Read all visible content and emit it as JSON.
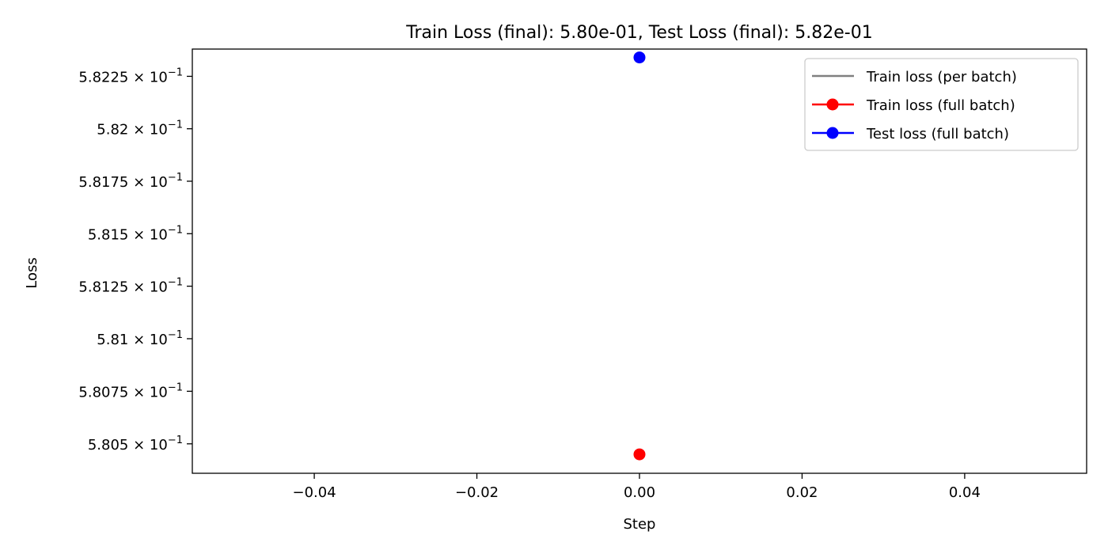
{
  "chart_data": {
    "type": "scatter",
    "title": "Train Loss (final): 5.80e-01, Test Loss (final): 5.82e-01",
    "xlabel": "Step",
    "ylabel": "Loss",
    "xlim": [
      -0.055,
      0.055
    ],
    "ylim": [
      0.58036,
      0.58238
    ],
    "y_scale": "log",
    "grid": false,
    "legend_position": "top-right",
    "x_ticks": [
      {
        "value": -0.04,
        "label": "−0.04"
      },
      {
        "value": -0.02,
        "label": "−0.02"
      },
      {
        "value": 0.0,
        "label": "0.00"
      },
      {
        "value": 0.02,
        "label": "0.02"
      },
      {
        "value": 0.04,
        "label": "0.04"
      }
    ],
    "y_ticks": [
      {
        "value": 0.5805,
        "mantissa": "5.805"
      },
      {
        "value": 0.58075,
        "mantissa": "5.8075"
      },
      {
        "value": 0.581,
        "mantissa": "5.81"
      },
      {
        "value": 0.58125,
        "mantissa": "5.8125"
      },
      {
        "value": 0.5815,
        "mantissa": "5.815"
      },
      {
        "value": 0.58175,
        "mantissa": "5.8175"
      },
      {
        "value": 0.582,
        "mantissa": "5.82"
      },
      {
        "value": 0.58225,
        "mantissa": "5.8225"
      }
    ],
    "y_tick_multiplier": "× 10",
    "y_tick_exponent": "−1",
    "series": [
      {
        "name": "Train loss (per batch)",
        "color": "#808080",
        "marker": "none",
        "x": [],
        "y": []
      },
      {
        "name": "Train loss (full batch)",
        "color": "#ff0000",
        "marker": "circle",
        "x": [
          0.0
        ],
        "y": [
          0.58045
        ]
      },
      {
        "name": "Test loss (full batch)",
        "color": "#0000ff",
        "marker": "circle",
        "x": [
          0.0
        ],
        "y": [
          0.58234
        ]
      }
    ]
  }
}
